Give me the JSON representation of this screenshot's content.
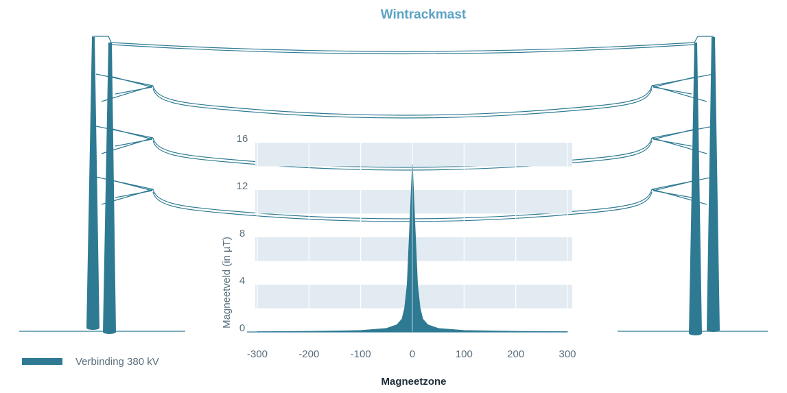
{
  "title": "Wintrackmast",
  "colors": {
    "accent": "#2f7a93",
    "title": "#5aa2c4",
    "band": "#e2ebf2",
    "text": "#5a6e7c",
    "dark": "#1b2b36"
  },
  "legend": {
    "label": "Verbinding 380 kV"
  },
  "chart_data": {
    "type": "area",
    "title": "Wintrackmast",
    "xlabel": "Magneetzone",
    "ylabel": "Magneetveld (in µT)",
    "xlim": [
      -300,
      300
    ],
    "ylim": [
      0,
      16
    ],
    "x_ticks": [
      "-300",
      "-200",
      "-100",
      "0",
      "100",
      "200",
      "300"
    ],
    "y_ticks": [
      "0",
      "4",
      "8",
      "12",
      "16"
    ],
    "grid": true,
    "series": [
      {
        "name": "Verbinding 380 kV",
        "x": [
          -300,
          -200,
          -100,
          -50,
          -30,
          -20,
          -15,
          -10,
          -5,
          0,
          5,
          10,
          15,
          20,
          30,
          50,
          100,
          200,
          300
        ],
        "y": [
          0.02,
          0.05,
          0.12,
          0.3,
          0.6,
          1.1,
          2.0,
          4.0,
          9.0,
          14.2,
          9.0,
          4.0,
          2.0,
          1.1,
          0.6,
          0.3,
          0.12,
          0.05,
          0.02
        ]
      }
    ]
  }
}
